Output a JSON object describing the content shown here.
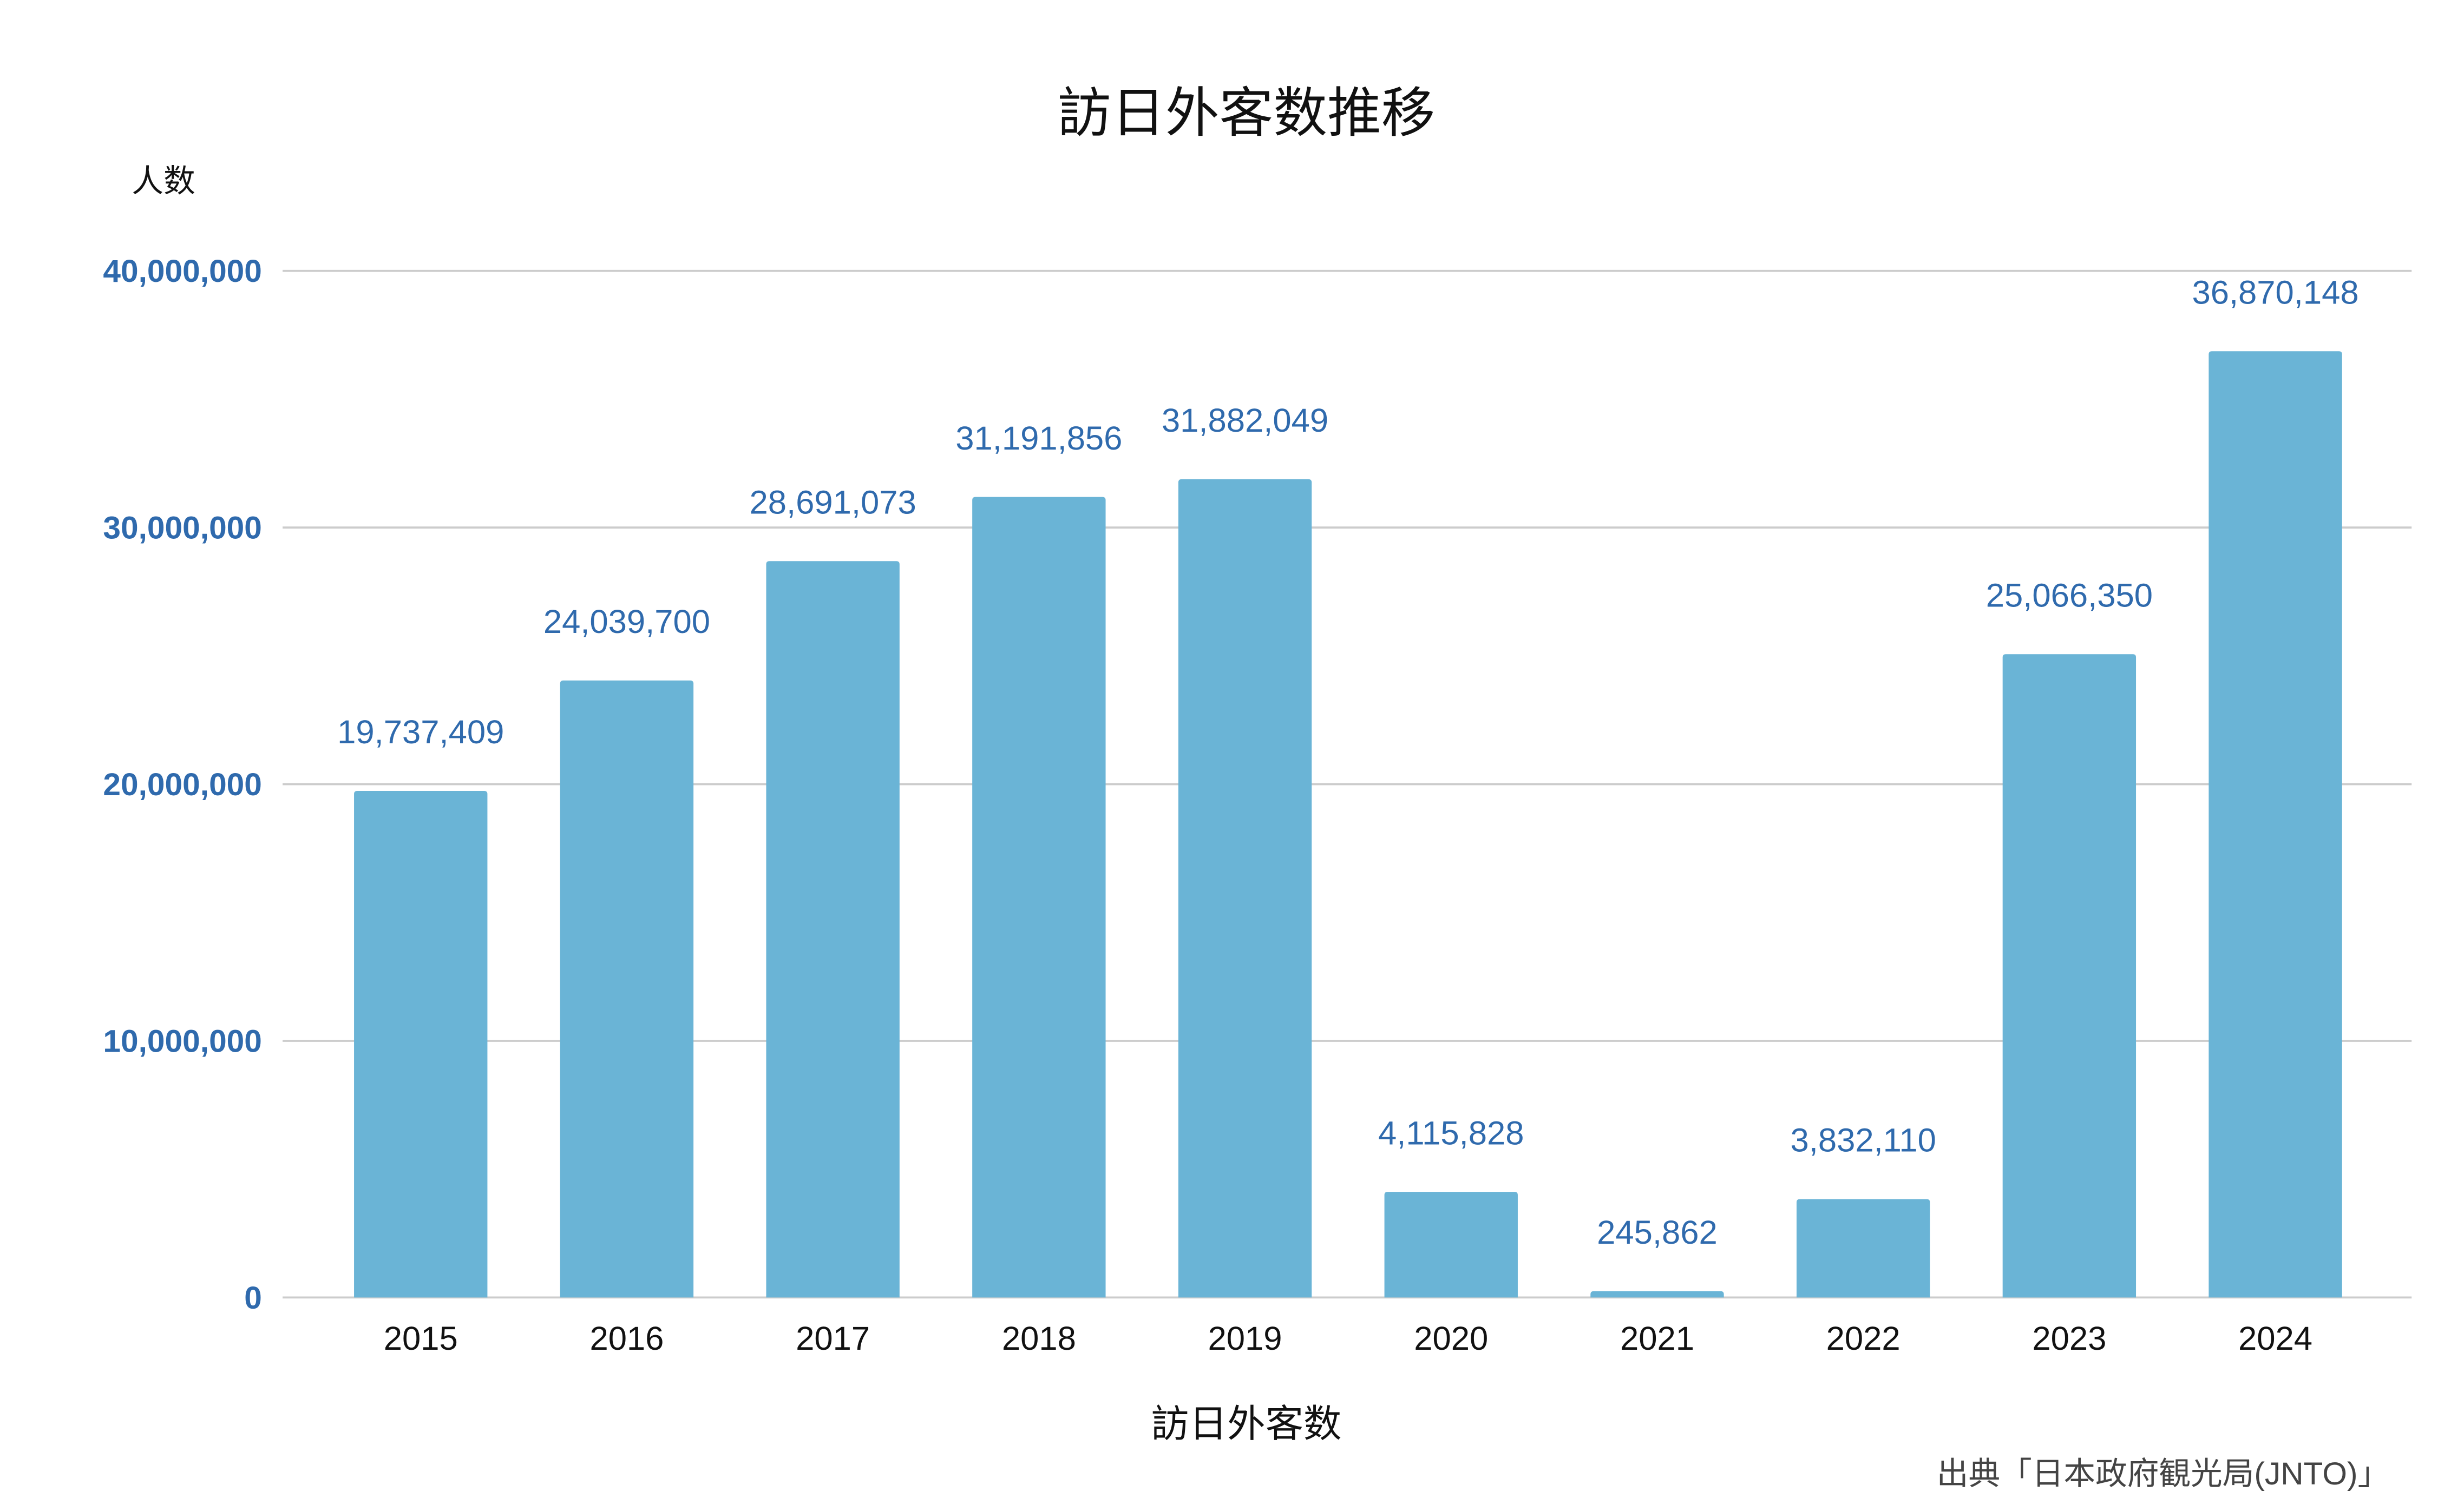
{
  "chart_data": {
    "type": "bar",
    "title": "訪日外客数推移",
    "ylabel": "人数",
    "xlabel": "訪日外客数",
    "source": "出典「日本政府観光局(JNTO)」",
    "categories": [
      "2015",
      "2016",
      "2017",
      "2018",
      "2019",
      "2020",
      "2021",
      "2022",
      "2023",
      "2024"
    ],
    "values": [
      19737409,
      24039700,
      28691073,
      31191856,
      31882049,
      4115828,
      245862,
      3832110,
      25066350,
      36870148
    ],
    "data_labels": [
      "19,737,409",
      "24,039,700",
      "28,691,073",
      "31,191,856",
      "31,882,049",
      "4,115,828",
      "245,862",
      "3,832,110",
      "25,066,350",
      "36,870,148"
    ],
    "ylim": [
      0,
      40000000
    ],
    "yticks": [
      0,
      10000000,
      20000000,
      30000000,
      40000000
    ],
    "ytick_labels": [
      "0",
      "10,000,000",
      "20,000,000",
      "30,000,000",
      "40,000,000"
    ],
    "grid": true,
    "legend": "none",
    "colors": {
      "bar": "#6ab4d6",
      "label": "#2f6aad",
      "grid": "#cccccc"
    }
  }
}
